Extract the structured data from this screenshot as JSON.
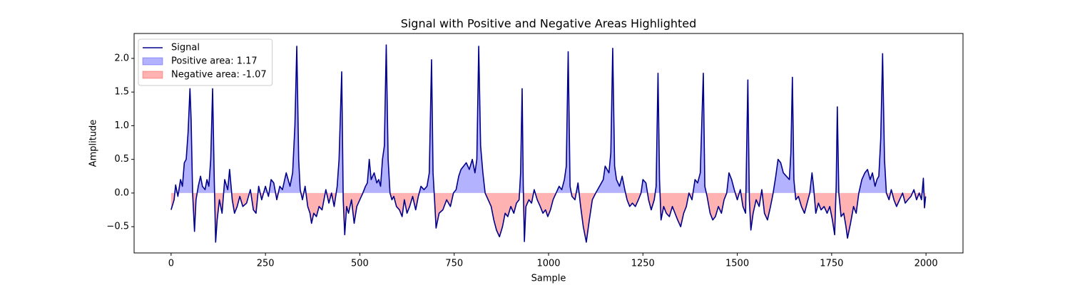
{
  "chart_data": {
    "type": "line",
    "title": "Signal with Positive and Negative Areas Highlighted",
    "xlabel": "Sample",
    "ylabel": "Amplitude",
    "x": [
      0,
      8,
      12,
      18,
      25,
      30,
      35,
      40,
      45,
      50,
      53,
      57,
      62,
      66,
      72,
      78,
      83,
      90,
      95,
      100,
      105,
      110,
      114,
      118,
      122,
      128,
      135,
      142,
      150,
      155,
      162,
      168,
      175,
      182,
      190,
      200,
      210,
      218,
      225,
      232,
      240,
      250,
      258,
      265,
      272,
      280,
      288,
      295,
      305,
      315,
      322,
      328,
      333,
      338,
      342,
      348,
      355,
      362,
      368,
      372,
      378,
      385,
      392,
      400,
      410,
      418,
      425,
      432,
      440,
      445,
      452,
      456,
      460,
      465,
      470,
      478,
      485,
      492,
      500,
      508,
      515,
      520,
      525,
      530,
      538,
      545,
      550,
      555,
      560,
      565,
      570,
      575,
      580,
      585,
      590,
      597,
      605,
      612,
      618,
      625,
      632,
      640,
      648,
      655,
      662,
      670,
      678,
      684,
      690,
      694,
      698,
      702,
      710,
      720,
      730,
      740,
      748,
      755,
      762,
      768,
      775,
      782,
      790,
      798,
      805,
      810,
      815,
      820,
      826,
      832,
      840,
      848,
      855,
      862,
      870,
      878,
      885,
      892,
      900,
      908,
      915,
      922,
      926,
      930,
      933,
      936,
      940,
      948,
      955,
      962,
      970,
      978,
      985,
      992,
      998,
      1005,
      1012,
      1020,
      1028,
      1035,
      1042,
      1047,
      1052,
      1057,
      1062,
      1070,
      1078,
      1085,
      1092,
      1100,
      1108,
      1116,
      1125,
      1135,
      1145,
      1150,
      1155,
      1160,
      1165,
      1170,
      1175,
      1180,
      1188,
      1195,
      1202,
      1208,
      1215,
      1222,
      1230,
      1238,
      1245,
      1250,
      1258,
      1265,
      1272,
      1280,
      1285,
      1290,
      1294,
      1298,
      1305,
      1312,
      1320,
      1328,
      1335,
      1342,
      1350,
      1358,
      1365,
      1372,
      1380,
      1388,
      1395,
      1402,
      1410,
      1414,
      1420,
      1428,
      1435,
      1442,
      1450,
      1458,
      1465,
      1472,
      1478,
      1485,
      1492,
      1500,
      1508,
      1515,
      1522,
      1528,
      1532,
      1536,
      1542,
      1550,
      1558,
      1565,
      1572,
      1580,
      1588,
      1595,
      1602,
      1608,
      1615,
      1622,
      1630,
      1638,
      1642,
      1646,
      1650,
      1655,
      1662,
      1670,
      1678,
      1685,
      1692,
      1698,
      1702,
      1708,
      1715,
      1722,
      1730,
      1738,
      1745,
      1752,
      1758,
      1762,
      1765,
      1769,
      1775,
      1782,
      1788,
      1792,
      1800,
      1808,
      1815,
      1822,
      1830,
      1838,
      1845,
      1852,
      1858,
      1865,
      1870,
      1875,
      1880,
      1885,
      1890,
      1895,
      1902,
      1908,
      1915,
      1922,
      1930,
      1938,
      1945,
      1952,
      1960,
      1968,
      1975,
      1982,
      1988,
      1993,
      1996,
      1999
    ],
    "series": [
      {
        "name": "Signal",
        "color": "#00008b",
        "values": [
          -0.25,
          -0.1,
          0.12,
          -0.05,
          0.2,
          0.1,
          0.45,
          0.5,
          0.9,
          1.55,
          1.1,
          0.0,
          -0.57,
          -0.1,
          0.1,
          0.25,
          0.1,
          0.05,
          0.2,
          0.1,
          0.5,
          1.55,
          0.3,
          -0.73,
          -0.4,
          -0.1,
          -0.3,
          0.2,
          0.05,
          0.35,
          -0.1,
          -0.3,
          -0.2,
          -0.05,
          -0.2,
          -0.15,
          0.05,
          -0.25,
          -0.3,
          0.1,
          -0.1,
          0.1,
          -0.05,
          0.2,
          0.15,
          -0.1,
          0.1,
          0.05,
          0.3,
          0.1,
          0.3,
          1.0,
          2.18,
          0.5,
          0.05,
          -0.1,
          0.1,
          -0.2,
          -0.3,
          -0.45,
          -0.3,
          -0.35,
          -0.2,
          -0.25,
          0.05,
          -0.15,
          0.0,
          -0.2,
          0.1,
          0.5,
          1.8,
          -0.1,
          -0.62,
          -0.2,
          -0.3,
          -0.1,
          -0.45,
          -0.2,
          -0.1,
          0.0,
          0.1,
          0.15,
          0.5,
          0.2,
          0.3,
          0.15,
          0.2,
          0.1,
          0.5,
          0.7,
          2.2,
          0.5,
          0.0,
          -0.1,
          -0.05,
          -0.2,
          -0.25,
          -0.35,
          -0.1,
          -0.3,
          -0.2,
          -0.05,
          -0.25,
          -0.05,
          0.1,
          0.05,
          0.1,
          0.3,
          1.98,
          0.3,
          -0.1,
          -0.52,
          -0.3,
          -0.25,
          -0.1,
          -0.2,
          0.0,
          0.05,
          0.25,
          0.35,
          0.4,
          0.45,
          0.35,
          0.5,
          0.3,
          0.5,
          2.18,
          0.7,
          0.3,
          0.0,
          -0.1,
          -0.2,
          -0.4,
          -0.55,
          -0.65,
          -0.5,
          -0.3,
          -0.35,
          -0.2,
          -0.3,
          -0.15,
          -0.1,
          0.3,
          1.55,
          0.1,
          -0.72,
          -0.2,
          -0.1,
          -0.15,
          0.05,
          -0.1,
          -0.2,
          -0.3,
          -0.25,
          -0.35,
          -0.25,
          -0.1,
          0.0,
          0.1,
          0.05,
          0.2,
          0.4,
          2.1,
          0.1,
          -0.05,
          -0.1,
          0.15,
          -0.2,
          -0.5,
          -0.73,
          -0.4,
          -0.1,
          0.0,
          0.1,
          0.2,
          0.4,
          0.35,
          0.3,
          0.6,
          2.15,
          0.4,
          0.2,
          0.1,
          0.25,
          0.05,
          -0.1,
          -0.2,
          -0.15,
          -0.2,
          -0.1,
          0.0,
          0.2,
          0.15,
          -0.1,
          -0.25,
          -0.1,
          0.1,
          1.78,
          0.2,
          -0.4,
          -0.2,
          -0.3,
          -0.35,
          -0.2,
          -0.3,
          -0.4,
          -0.5,
          -0.3,
          -0.2,
          0.0,
          -0.1,
          0.2,
          0.15,
          0.3,
          1.78,
          0.1,
          -0.05,
          -0.3,
          -0.4,
          -0.35,
          -0.2,
          -0.3,
          -0.1,
          0.0,
          0.3,
          0.2,
          0.05,
          -0.1,
          0.05,
          -0.2,
          -0.3,
          1.68,
          -0.1,
          -0.55,
          -0.3,
          -0.1,
          -0.2,
          0.05,
          -0.3,
          -0.4,
          -0.2,
          0.0,
          0.25,
          0.5,
          0.45,
          0.3,
          0.25,
          0.2,
          0.6,
          1.72,
          0.2,
          -0.1,
          -0.05,
          -0.2,
          -0.3,
          -0.15,
          0.0,
          0.3,
          0.1,
          -0.3,
          -0.15,
          -0.25,
          -0.2,
          -0.3,
          -0.2,
          -0.4,
          -0.62,
          0.1,
          1.28,
          0.0,
          -0.35,
          -0.3,
          -0.5,
          -0.67,
          -0.45,
          -0.2,
          -0.3,
          0.0,
          0.2,
          0.3,
          0.35,
          0.2,
          0.3,
          0.1,
          0.2,
          0.25,
          0.8,
          2.07,
          0.5,
          0.0,
          -0.1,
          0.05,
          -0.1,
          -0.2,
          -0.1,
          0.0,
          -0.15,
          -0.1,
          -0.05,
          0.05,
          -0.1,
          0.0,
          -0.1,
          0.22,
          -0.22,
          -0.05
        ]
      }
    ],
    "fills": [
      {
        "name": "Positive area: 1.17",
        "color": "#0000ff",
        "side": "above"
      },
      {
        "name": "Negative area: -1.07",
        "color": "#ff0000",
        "side": "below"
      }
    ],
    "xlim": [
      -98,
      2098
    ],
    "ylim": [
      -0.89,
      2.37
    ],
    "xticks": [
      0,
      250,
      500,
      750,
      1000,
      1250,
      1500,
      1750,
      2000
    ],
    "yticks": [
      {
        "value": -0.5,
        "label": "−0.5"
      },
      {
        "value": 0,
        "label": "0.0"
      },
      0.5,
      {
        "value": 1,
        "label": "1.0"
      },
      1.5,
      {
        "value": 2,
        "label": "2.0"
      }
    ],
    "legend": "upper left"
  }
}
